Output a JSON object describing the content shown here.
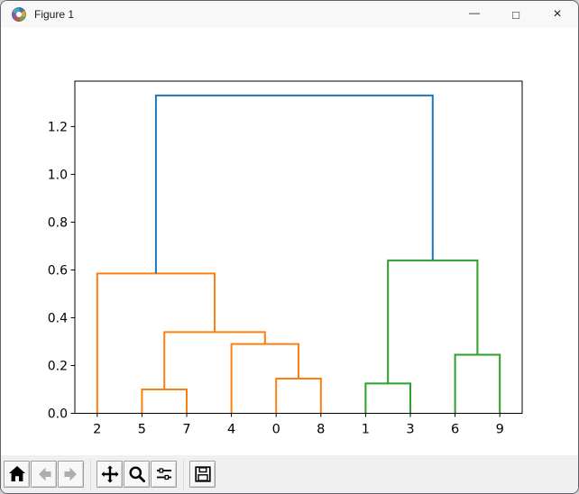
{
  "window": {
    "title": "Figure 1",
    "controls": {
      "minimize": {
        "glyph": "—"
      },
      "maximize": {
        "glyph": "□"
      },
      "close": {
        "glyph": "×"
      }
    }
  },
  "toolbar": {
    "buttons": [
      {
        "name": "Home",
        "icon": "home-icon",
        "enabled": true
      },
      {
        "name": "Back",
        "icon": "arrow-left-icon",
        "enabled": false
      },
      {
        "name": "Forward",
        "icon": "arrow-right-icon",
        "enabled": false
      },
      {
        "name": "Pan",
        "icon": "move-icon",
        "enabled": true
      },
      {
        "name": "Zoom",
        "icon": "magnifier-icon",
        "enabled": true
      },
      {
        "name": "Configure subplots",
        "icon": "sliders-icon",
        "enabled": true
      },
      {
        "name": "Save",
        "icon": "floppy-disk-icon",
        "enabled": true
      }
    ]
  },
  "chart_data": {
    "type": "dendrogram",
    "title": "",
    "xlabel": "",
    "ylabel": "",
    "grid": false,
    "legend": null,
    "xticklabels": [
      "2",
      "5",
      "7",
      "4",
      "0",
      "8",
      "1",
      "3",
      "6",
      "9"
    ],
    "leaf_x": [
      5,
      15,
      25,
      35,
      45,
      55,
      65,
      75,
      85,
      95
    ],
    "xlim": [
      0,
      100
    ],
    "yticks": [
      0.0,
      0.2,
      0.4,
      0.6,
      0.8,
      1.0,
      1.2
    ],
    "ylim": [
      0,
      1.39
    ],
    "colors": {
      "above_threshold": "#1f77b4",
      "left_cluster": "#ff7f0e",
      "right_cluster": "#2ca02c",
      "axis": "#000000"
    },
    "links": [
      {
        "x1": 15,
        "h1": 0,
        "x2": 25,
        "h2": 0,
        "height": 0.1,
        "color": "#ff7f0e"
      },
      {
        "x1": 45,
        "h1": 0,
        "x2": 55,
        "h2": 0,
        "height": 0.145,
        "color": "#ff7f0e"
      },
      {
        "x1": 35,
        "h1": 0,
        "x2": 50,
        "h2": 0.145,
        "height": 0.29,
        "color": "#ff7f0e"
      },
      {
        "x1": 20,
        "h1": 0.1,
        "x2": 42.5,
        "h2": 0.29,
        "height": 0.34,
        "color": "#ff7f0e"
      },
      {
        "x1": 5,
        "h1": 0,
        "x2": 31.25,
        "h2": 0.34,
        "height": 0.585,
        "color": "#ff7f0e"
      },
      {
        "x1": 65,
        "h1": 0,
        "x2": 75,
        "h2": 0,
        "height": 0.125,
        "color": "#2ca02c"
      },
      {
        "x1": 85,
        "h1": 0,
        "x2": 95,
        "h2": 0,
        "height": 0.245,
        "color": "#2ca02c"
      },
      {
        "x1": 70,
        "h1": 0.125,
        "x2": 90,
        "h2": 0.245,
        "height": 0.64,
        "color": "#2ca02c"
      },
      {
        "x1": 18.125,
        "h1": 0.585,
        "x2": 80,
        "h2": 0.64,
        "height": 1.33,
        "color": "#1f77b4"
      }
    ]
  }
}
